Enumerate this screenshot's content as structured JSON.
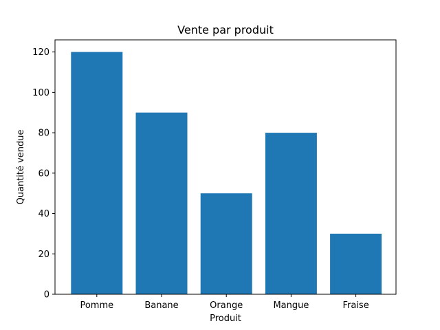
{
  "chart_data": {
    "type": "bar",
    "title": "Vente par produit",
    "xlabel": "Produit",
    "ylabel": "Quantité vendue",
    "categories": [
      "Pomme",
      "Banane",
      "Orange",
      "Mangue",
      "Fraise"
    ],
    "values": [
      120,
      90,
      50,
      80,
      30
    ],
    "ylim": [
      0,
      126
    ],
    "yticks": [
      0,
      20,
      40,
      60,
      80,
      100,
      120
    ],
    "grid": false,
    "bar_color": "#1f77b4",
    "axis_color": "#000000"
  }
}
